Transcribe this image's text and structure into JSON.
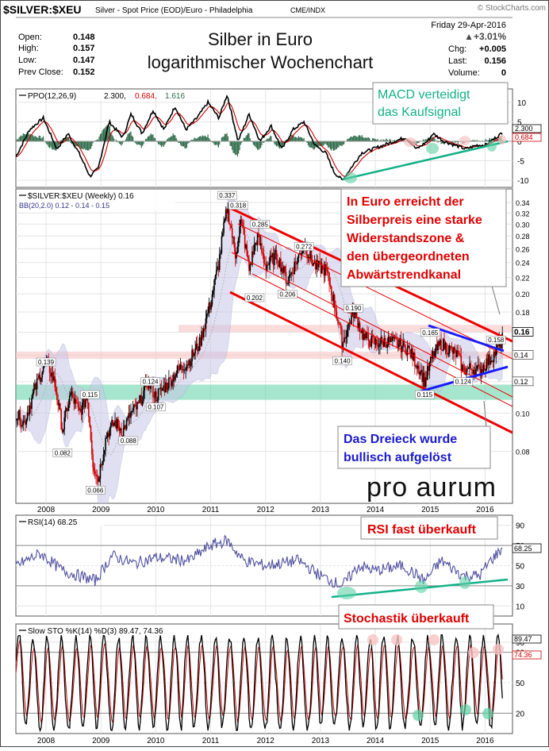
{
  "header": {
    "symbol": "$SILVER:$XEU",
    "description": "Silver - Spot Price (EOD)/Euro - Philadelphia",
    "exchange": "CME/INDX",
    "brand": "© StockCharts.com",
    "date": "Friday  29-Apr-2016",
    "change_pct": "▲+3.01%",
    "stats": [
      {
        "label": "Open:",
        "value": "0.148"
      },
      {
        "label": "High:",
        "value": "0.157"
      },
      {
        "label": "Low:",
        "value": "0.147"
      },
      {
        "label": "Prev Close:",
        "value": "0.152"
      }
    ],
    "right_stats": [
      {
        "label": "Chg:",
        "value": "+0.005"
      },
      {
        "label": "Last:",
        "value": "0.156"
      },
      {
        "label": "Volume:",
        "value": "0"
      }
    ],
    "title_line1": "Silber in Euro",
    "title_line2": "logarithmischer Wochenchart"
  },
  "ppo_panel": {
    "legend_prefix": "PPO(12,26,9)",
    "legend_v1": "2.300,",
    "legend_v2": "0.684,",
    "legend_v3": "1.616",
    "current_labels": [
      "2.300",
      "0.684"
    ],
    "annotation": "MACD verteidigt\ndas Kaufsignal"
  },
  "price_panel": {
    "legend": "$SILVER:$XEU (Weekly) 0.16",
    "bb_legend": "BB(20,2.0) 0.12 - 0.14 - 0.15",
    "annotation_main": "In Euro erreicht der\nSilberpreis eine starke\nWiderstandszone &\nden übergeordneten\nAbwärtstrendkanal",
    "annotation_triangle": "Das Dreieck wurde\nbullisch aufgelöst",
    "logo": "pro aurum",
    "current_labels": [
      "0.16",
      "0.14",
      "0.12"
    ]
  },
  "rsi_panel": {
    "legend": "RSI(14) 68.25",
    "current_label": "68.25",
    "annotation": "RSI fast überkauft"
  },
  "sto_panel": {
    "legend": "Slow STO %K(14) %D(3) 89.47, 74.36",
    "current_labels": [
      "89.47",
      "74.36"
    ],
    "annotation": "Stochastik überkauft"
  },
  "colors": {
    "ppo_line": "#000000",
    "signal_line": "#cc0000",
    "histogram": "#2e6b4a",
    "bb_fill": "#c8c8e8",
    "green_zone": "#5ed1a6",
    "pink_zone": "#f7c4c4",
    "trend_red": "#ee0000",
    "trend_blue": "#1a1aff",
    "annotation_red": "#e00000",
    "annotation_blue": "#1a1acc",
    "annotation_green": "#12b088"
  },
  "chart_data": [
    {
      "type": "line",
      "title": "PPO(12,26,9)",
      "y_ticks": [
        10,
        5,
        0,
        -5,
        -10
      ],
      "series": [
        {
          "name": "PPO",
          "last": 2.3
        },
        {
          "name": "Signal",
          "last": 0.684
        },
        {
          "name": "Histogram",
          "last": 1.616
        }
      ]
    },
    {
      "type": "line",
      "title": "$SILVER:$XEU (Weekly) 0.16",
      "scale": "log",
      "x_ticks": [
        "2008",
        "2009",
        "2010",
        "2011",
        "2012",
        "2013",
        "2014",
        "2015",
        "2016"
      ],
      "y_ticks": [
        0.08,
        0.1,
        0.12,
        0.14,
        0.16,
        0.18,
        0.2,
        0.22,
        0.24,
        0.26,
        0.28,
        0.3,
        0.32,
        0.34
      ],
      "price_labels": [
        {
          "x": "2008.0",
          "y": 0.139,
          "label": "0.139"
        },
        {
          "x": "2008.3",
          "y": 0.082,
          "label": "0.082"
        },
        {
          "x": "2008.8",
          "y": 0.115,
          "label": "0.115"
        },
        {
          "x": "2008.9",
          "y": 0.066,
          "label": "0.066"
        },
        {
          "x": "2009.5",
          "y": 0.088,
          "label": "0.088"
        },
        {
          "x": "2009.9",
          "y": 0.124,
          "label": "0.124"
        },
        {
          "x": "2010.0",
          "y": 0.107,
          "label": "0.107"
        },
        {
          "x": "2011.3",
          "y": 0.337,
          "label": "0.337"
        },
        {
          "x": "2011.5",
          "y": 0.318,
          "label": "0.318"
        },
        {
          "x": "2011.9",
          "y": 0.285,
          "label": "0.285"
        },
        {
          "x": "2011.8",
          "y": 0.202,
          "label": "0.202"
        },
        {
          "x": "2012.4",
          "y": 0.206,
          "label": "0.206"
        },
        {
          "x": "2012.7",
          "y": 0.272,
          "label": "0.272"
        },
        {
          "x": "2013.6",
          "y": 0.19,
          "label": "0.190"
        },
        {
          "x": "2013.4",
          "y": 0.14,
          "label": "0.140"
        },
        {
          "x": "2015.0",
          "y": 0.165,
          "label": "0.165"
        },
        {
          "x": "2014.9",
          "y": 0.115,
          "label": "0.115"
        },
        {
          "x": "2015.6",
          "y": 0.124,
          "label": "0.124"
        },
        {
          "x": "2016.2",
          "y": 0.158,
          "label": "0.158"
        }
      ],
      "bollinger": {
        "lower": 0.12,
        "middle": 0.14,
        "upper": 0.15
      },
      "last": 0.16
    },
    {
      "type": "line",
      "title": "RSI(14) 68.25",
      "y_ticks": [
        90,
        70,
        50,
        30,
        10
      ],
      "series": [
        {
          "name": "RSI",
          "last": 68.25
        }
      ]
    },
    {
      "type": "line",
      "title": "Slow STO %K(14) %D(3) 89.47, 74.36",
      "x_ticks": [
        "2008",
        "2009",
        "2010",
        "2011",
        "2012",
        "2013",
        "2014",
        "2015",
        "2016"
      ],
      "y_ticks": [
        90,
        80,
        50,
        20
      ],
      "series": [
        {
          "name": "%K",
          "last": 89.47
        },
        {
          "name": "%D",
          "last": 74.36
        }
      ]
    }
  ]
}
